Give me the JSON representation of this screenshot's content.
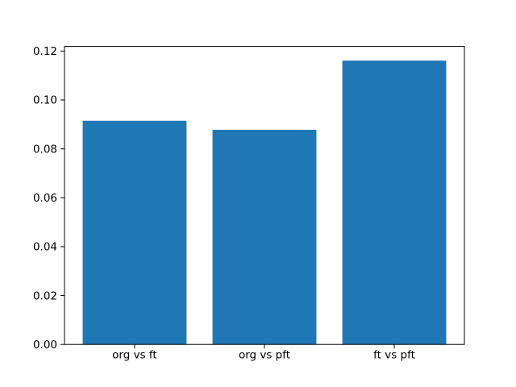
{
  "chart_data": {
    "type": "bar",
    "title": "",
    "xlabel": "",
    "ylabel": "",
    "categories": [
      "org vs ft",
      "org vs pft",
      "ft vs pft"
    ],
    "values": [
      0.0915,
      0.0878,
      0.1161
    ],
    "ylim": [
      0,
      0.1219
    ],
    "yticks": [
      0.0,
      0.02,
      0.04,
      0.06,
      0.08,
      0.1,
      0.12
    ],
    "ytick_decimals": 2,
    "bar_color": "#1f77b4",
    "bar_width_fraction": 0.8,
    "grid": false,
    "legend_position": "none",
    "background_color": "#ffffff",
    "spine_color": "#000000",
    "tick_color": "#000000",
    "text_color": "#000000"
  }
}
